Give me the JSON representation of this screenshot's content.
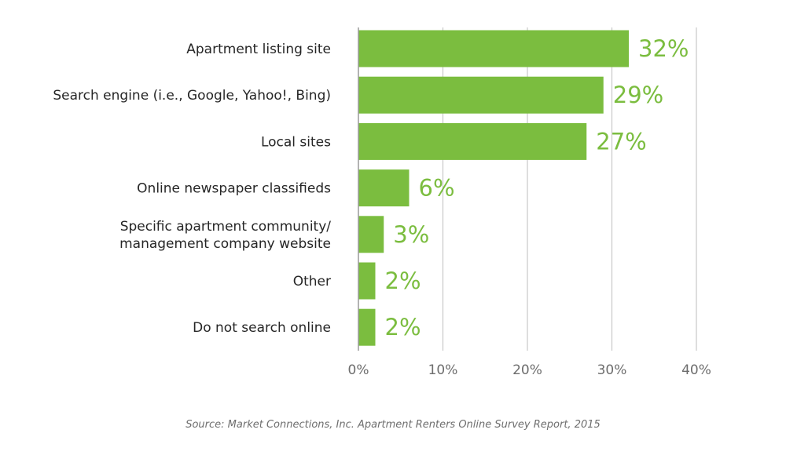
{
  "chart_data": {
    "type": "bar",
    "orientation": "horizontal",
    "categories": [
      [
        "Apartment listing site"
      ],
      [
        "Search engine (i.e., Google, Yahoo!, Bing)"
      ],
      [
        "Local sites"
      ],
      [
        "Online newspaper classifieds"
      ],
      [
        "Specific apartment community/",
        "management company website"
      ],
      [
        "Other"
      ],
      [
        "Do not search online"
      ]
    ],
    "values": [
      32,
      29,
      27,
      6,
      3,
      2,
      2
    ],
    "value_labels": [
      "32%",
      "29%",
      "27%",
      "6%",
      "3%",
      "2%",
      "2%"
    ],
    "xlim": [
      0,
      40
    ],
    "x_ticks": [
      0,
      10,
      20,
      30,
      40
    ],
    "x_tick_labels": [
      "0%",
      "10%",
      "20%",
      "30%",
      "40%"
    ],
    "grid": "vertical",
    "title": "",
    "xlabel": "",
    "ylabel": "",
    "colors": {
      "bar": "#7bbd3f",
      "value_label": "#7bbd3f",
      "grid": "#c8c8c8",
      "axis": "#9a9a9a"
    }
  },
  "source": "Source: Market Connections, Inc. Apartment Renters Online Survey Report, 2015"
}
